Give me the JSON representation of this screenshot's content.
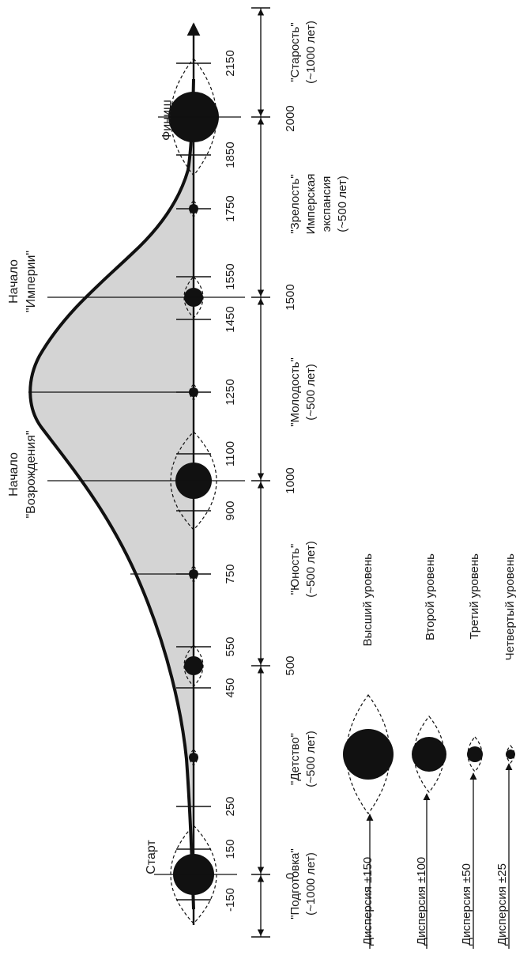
{
  "colors": {
    "ink": "#111111",
    "fill": "#d4d4d4",
    "paper": "#ffffff"
  },
  "timeline": {
    "ticks": [
      {
        "label": "-150"
      },
      {
        "label": "0"
      },
      {
        "label": "150"
      },
      {
        "label": "250"
      },
      {
        "label": "450"
      },
      {
        "label": "500"
      },
      {
        "label": "550"
      },
      {
        "label": "750"
      },
      {
        "label": "900"
      },
      {
        "label": "1000"
      },
      {
        "label": "1100"
      },
      {
        "label": "1250"
      },
      {
        "label": "1450"
      },
      {
        "label": "1500"
      },
      {
        "label": "1550"
      },
      {
        "label": "1750"
      },
      {
        "label": "1850"
      },
      {
        "label": "2000"
      },
      {
        "label": "2150"
      }
    ]
  },
  "events": {
    "start": "Старт",
    "renaissance": [
      "Начало",
      "\"Возрождения\""
    ],
    "empire": [
      "Начало",
      "\"Империи\""
    ],
    "finish": "Финиш"
  },
  "phases": [
    {
      "lines": [
        "\"Подготовка\"",
        "(~1000 лет)"
      ]
    },
    {
      "lines": [
        "\"Детство\"",
        "(~500 лет)"
      ]
    },
    {
      "lines": [
        "\"Юность\"",
        "(~500 лет)"
      ]
    },
    {
      "lines": [
        "\"Молодость\"",
        "(~500 лет)"
      ]
    },
    {
      "lines": [
        "\"Зрелость\"",
        "Имперская",
        "экспансия",
        "(~500 лет)"
      ]
    },
    {
      "lines": [
        "\"Старость\"",
        "(~1000 лет)"
      ]
    }
  ],
  "legend": [
    {
      "level": "Высший уровень",
      "dispersion": "Дисперсия ±150"
    },
    {
      "level": "Второй уровень",
      "dispersion": "Дисперсия ±100"
    },
    {
      "level": "Третий уровень",
      "dispersion": "Дисперсия ±50"
    },
    {
      "level": "Четвертый уровень",
      "dispersion": "Дисперсия ±25"
    }
  ]
}
